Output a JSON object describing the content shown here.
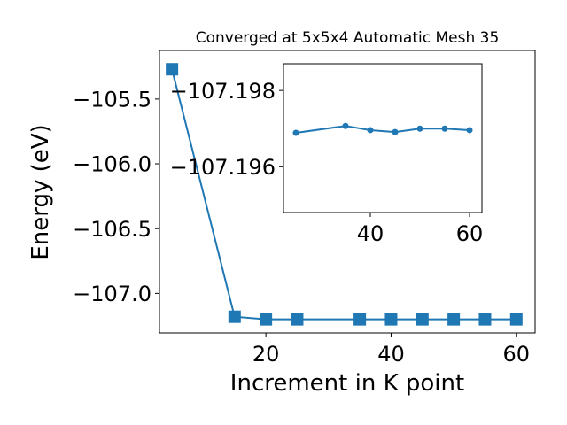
{
  "chart_data": [
    {
      "type": "line",
      "title": "Converged at 5x5x4 Automatic Mesh 35",
      "xlabel": "Increment in K point",
      "ylabel": "Energy (eV)",
      "xlim": [
        3,
        63
      ],
      "ylim": [
        -107.305,
        -105.125
      ],
      "xticks": [
        20,
        40,
        60
      ],
      "xtick_labels": [
        "20",
        "40",
        "60"
      ],
      "yticks": [
        -105.5,
        -106.0,
        -106.5,
        -107.0
      ],
      "ytick_labels": [
        "−105.5",
        "−106.0",
        "−106.5",
        "−107.0"
      ],
      "grid": false,
      "marker": "square",
      "color": "#1f77b4",
      "series": [
        {
          "x": [
            5,
            15,
            20,
            25,
            35,
            40,
            45,
            50,
            55,
            60
          ],
          "values": [
            -105.27,
            -107.18,
            -107.2,
            -107.2,
            -107.2,
            -107.2,
            -107.2,
            -107.2,
            -107.2,
            -107.2
          ]
        }
      ]
    },
    {
      "type": "line",
      "title": "",
      "xlabel": "",
      "ylabel": "",
      "xlim": [
        22.5,
        62.5
      ],
      "ylim": [
        -107.1987,
        -107.1948
      ],
      "y_axis_inverted": true,
      "xticks": [
        40,
        60
      ],
      "xtick_labels": [
        "40",
        "60"
      ],
      "yticks": [
        -107.198,
        -107.196
      ],
      "ytick_labels": [
        "−107.198",
        "−107.196"
      ],
      "grid": false,
      "marker": "circle",
      "color": "#1f77b4",
      "series": [
        {
          "x": [
            25,
            35,
            40,
            45,
            50,
            55,
            60
          ],
          "values": [
            -107.19689,
            -107.19707,
            -107.19696,
            -107.19691,
            -107.197,
            -107.197,
            -107.19696
          ]
        }
      ]
    }
  ]
}
